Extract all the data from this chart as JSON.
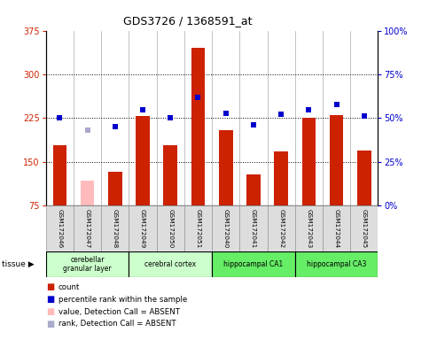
{
  "title": "GDS3726 / 1368591_at",
  "samples": [
    "GSM172046",
    "GSM172047",
    "GSM172048",
    "GSM172049",
    "GSM172050",
    "GSM172051",
    "GSM172040",
    "GSM172041",
    "GSM172042",
    "GSM172043",
    "GSM172044",
    "GSM172045"
  ],
  "count_values": [
    178,
    null,
    133,
    228,
    178,
    345,
    205,
    128,
    168,
    225,
    230,
    170
  ],
  "count_absent": [
    null,
    118,
    null,
    null,
    null,
    null,
    null,
    null,
    null,
    null,
    null,
    null
  ],
  "rank_values": [
    50,
    null,
    45,
    55,
    50,
    62,
    53,
    46,
    52,
    55,
    58,
    51
  ],
  "rank_absent": [
    null,
    43,
    null,
    null,
    null,
    null,
    null,
    null,
    null,
    null,
    null,
    null
  ],
  "bar_color": "#cc2200",
  "bar_absent_color": "#ffbbbb",
  "rank_color": "#0000cc",
  "rank_absent_color": "#aaaacc",
  "ylim_left": [
    75,
    375
  ],
  "ylim_right": [
    0,
    100
  ],
  "yticks_left": [
    75,
    150,
    225,
    300,
    375
  ],
  "yticks_right": [
    0,
    25,
    50,
    75,
    100
  ],
  "grid_values": [
    150,
    225,
    300
  ],
  "tissues": [
    {
      "label": "cerebellar\ngranular layer",
      "start": 0,
      "end": 3,
      "color": "#ccffcc"
    },
    {
      "label": "cerebral cortex",
      "start": 3,
      "end": 6,
      "color": "#ccffcc"
    },
    {
      "label": "hippocampal CA1",
      "start": 6,
      "end": 9,
      "color": "#66ee66"
    },
    {
      "label": "hippocampal CA3",
      "start": 9,
      "end": 12,
      "color": "#66ee66"
    }
  ],
  "bg_color": "#ffffff",
  "plot_bg": "#ffffff",
  "legend_items": [
    {
      "label": "count",
      "color": "#cc2200"
    },
    {
      "label": "percentile rank within the sample",
      "color": "#0000cc"
    },
    {
      "label": "value, Detection Call = ABSENT",
      "color": "#ffbbbb"
    },
    {
      "label": "rank, Detection Call = ABSENT",
      "color": "#aaaacc"
    }
  ]
}
